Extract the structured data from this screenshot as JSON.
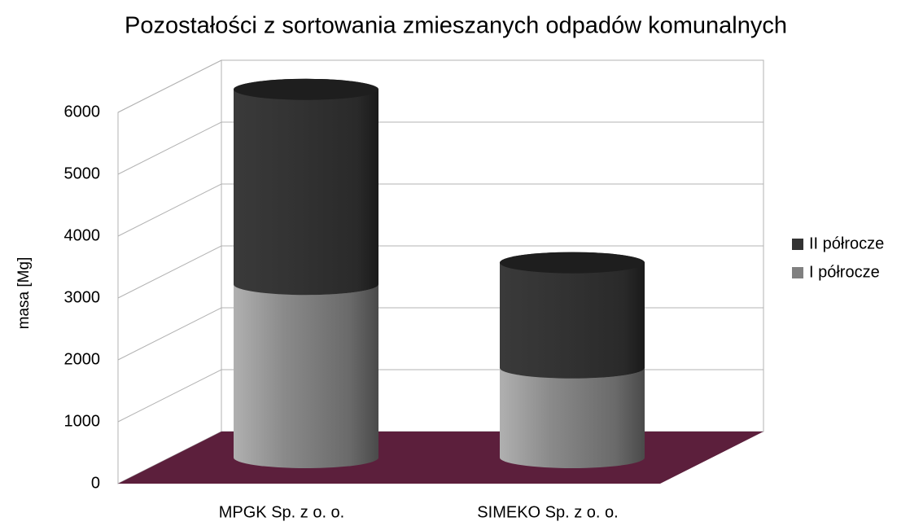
{
  "chart_data": {
    "type": "bar3d_cylinder_stacked",
    "title": "Pozostałości z sortowania zmieszanych odpadów komunalnych",
    "y_label": "masa [Mg]",
    "categories": [
      "MPGK Sp. z o. o.",
      "SIMEKO Sp. z o. o."
    ],
    "series": [
      {
        "name": "I półrocze",
        "color": "#808080",
        "values": [
          2800,
          1450
        ]
      },
      {
        "name": "II półrocze",
        "color": "#333333",
        "values": [
          3150,
          1700
        ]
      }
    ],
    "ylim": [
      0,
      6000
    ],
    "yticks": [
      0,
      1000,
      2000,
      3000,
      4000,
      5000,
      6000
    ],
    "grid": true,
    "legend": "right",
    "floor_color": "#5c1f3c"
  }
}
